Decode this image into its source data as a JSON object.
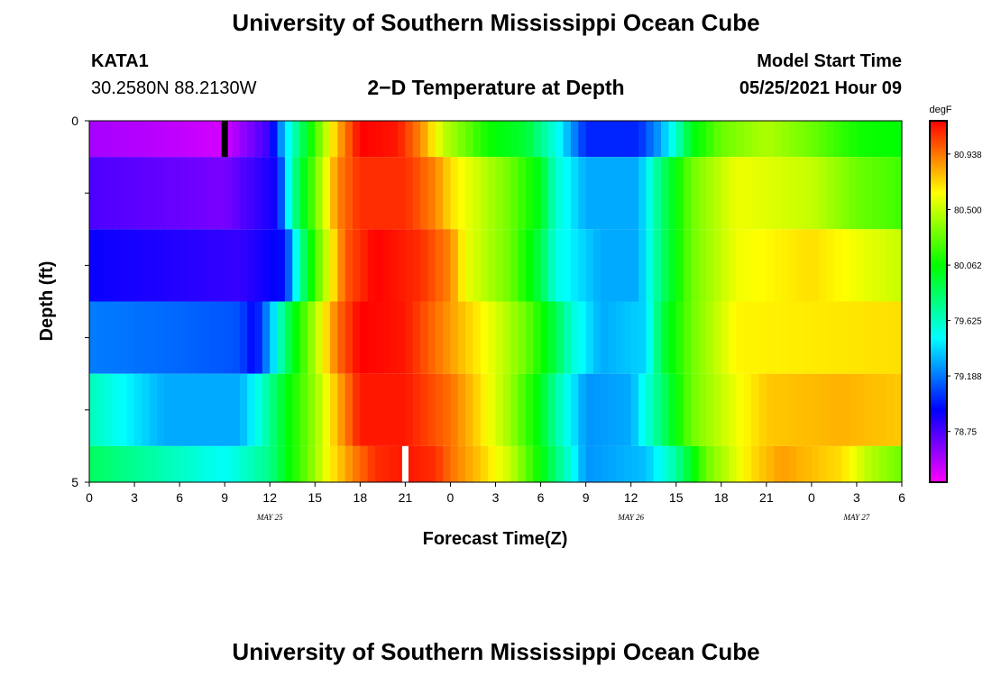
{
  "header": {
    "title": "University of Southern Mississippi Ocean Cube",
    "station_id": "KATA1",
    "station_coords": "30.2580N  88.2130W",
    "subtitle": "2−D Temperature at Depth",
    "start_label": "Model Start Time",
    "start_value": "05/25/2021 Hour 09"
  },
  "footer": {
    "title": "University of Southern Mississippi Ocean Cube"
  },
  "chart_data": {
    "type": "heatmap",
    "title": "2−D Temperature at Depth",
    "xlabel": "Forecast Time(Z)",
    "ylabel": "Depth (ft)",
    "ylim": [
      0,
      5
    ],
    "y_ticks": [
      0,
      1,
      2,
      3,
      4,
      5
    ],
    "y_tick_labels": [
      "0",
      "",
      "",
      "",
      "",
      "5"
    ],
    "x_hours": [
      0,
      54
    ],
    "x_tick_labels": [
      "0",
      "3",
      "6",
      "9",
      "12",
      "15",
      "18",
      "21",
      "0",
      "3",
      "6",
      "9",
      "12",
      "15",
      "18",
      "21",
      "0",
      "3",
      "6"
    ],
    "date_labels": [
      {
        "label": "MAY 25",
        "hour": 12
      },
      {
        "label": "MAY 26",
        "hour": 36
      },
      {
        "label": "MAY 27",
        "hour": 51
      }
    ],
    "colorbar": {
      "units": "degF",
      "range": [
        78.35,
        81.2
      ],
      "tick_values": [
        80.938,
        80.5,
        80.062,
        79.625,
        79.188,
        78.75
      ],
      "tick_labels": [
        "80.938",
        "80.500",
        "80.062",
        "79.625",
        "79.188",
        "78.75"
      ]
    },
    "markers": [
      {
        "name": "model-start-marker",
        "hour": 9,
        "depth_band": [
          0,
          0.5
        ],
        "color": "#000000"
      },
      {
        "name": "current-time-marker",
        "hour": 21,
        "depth_band": [
          4.5,
          5
        ],
        "color": "#ffffff"
      }
    ],
    "depth_bands": [
      {
        "depth_range": [
          0,
          0.5
        ],
        "keys": [
          [
            0,
            78.55
          ],
          [
            5,
            78.5
          ],
          [
            9,
            78.45
          ],
          [
            12,
            78.8
          ],
          [
            13,
            79.4
          ],
          [
            14.5,
            80.0
          ],
          [
            16.5,
            80.8
          ],
          [
            18,
            81.2
          ],
          [
            20.5,
            81.15
          ],
          [
            22,
            80.9
          ],
          [
            23.5,
            80.5
          ],
          [
            25,
            80.3
          ],
          [
            26,
            80.15
          ],
          [
            27,
            80.05
          ],
          [
            29,
            79.95
          ],
          [
            31,
            79.55
          ],
          [
            33,
            79.0
          ],
          [
            36.5,
            79.0
          ],
          [
            38,
            79.3
          ],
          [
            39,
            79.6
          ],
          [
            40,
            80.0
          ],
          [
            42,
            80.3
          ],
          [
            45,
            80.45
          ],
          [
            48,
            80.3
          ],
          [
            51,
            80.1
          ],
          [
            54,
            80.05
          ]
        ]
      },
      {
        "depth_range": [
          0.5,
          1.5
        ],
        "keys": [
          [
            0,
            78.75
          ],
          [
            9,
            78.65
          ],
          [
            12.5,
            78.9
          ],
          [
            13.5,
            79.7
          ],
          [
            15,
            80.3
          ],
          [
            16.5,
            80.9
          ],
          [
            18,
            81.1
          ],
          [
            21,
            81.1
          ],
          [
            23,
            80.9
          ],
          [
            24,
            80.7
          ],
          [
            26,
            80.5
          ],
          [
            28,
            80.3
          ],
          [
            30,
            80.0
          ],
          [
            31,
            79.6
          ],
          [
            33,
            79.3
          ],
          [
            36.5,
            79.3
          ],
          [
            38,
            79.8
          ],
          [
            40,
            80.3
          ],
          [
            43,
            80.6
          ],
          [
            48,
            80.5
          ],
          [
            51,
            80.3
          ],
          [
            54,
            80.2
          ]
        ]
      },
      {
        "depth_range": [
          1.5,
          2.5
        ],
        "keys": [
          [
            0,
            78.9
          ],
          [
            10,
            78.8
          ],
          [
            13,
            78.95
          ],
          [
            14,
            79.7
          ],
          [
            15,
            80.2
          ],
          [
            17,
            81.0
          ],
          [
            19,
            81.2
          ],
          [
            22,
            81.1
          ],
          [
            24,
            80.9
          ],
          [
            25,
            80.6
          ],
          [
            28,
            80.3
          ],
          [
            30,
            79.9
          ],
          [
            31,
            79.55
          ],
          [
            34,
            79.3
          ],
          [
            36.5,
            79.3
          ],
          [
            38,
            79.8
          ],
          [
            40,
            80.3
          ],
          [
            43,
            80.6
          ],
          [
            48,
            80.7
          ],
          [
            51,
            80.6
          ],
          [
            54,
            80.5
          ]
        ]
      },
      {
        "depth_range": [
          2.5,
          3.5
        ],
        "keys": [
          [
            0,
            79.2
          ],
          [
            6,
            79.15
          ],
          [
            10,
            79.1
          ],
          [
            11,
            78.9
          ],
          [
            12,
            79.3
          ],
          [
            13,
            79.8
          ],
          [
            14.5,
            80.3
          ],
          [
            16.5,
            80.95
          ],
          [
            18,
            81.2
          ],
          [
            21,
            81.15
          ],
          [
            23,
            80.95
          ],
          [
            25,
            80.75
          ],
          [
            27,
            80.55
          ],
          [
            29,
            80.3
          ],
          [
            31,
            79.9
          ],
          [
            32,
            79.6
          ],
          [
            34,
            79.3
          ],
          [
            37,
            79.4
          ],
          [
            38,
            79.9
          ],
          [
            40,
            80.3
          ],
          [
            43,
            80.65
          ],
          [
            54,
            80.7
          ]
        ]
      },
      {
        "depth_range": [
          3.5,
          4.5
        ],
        "keys": [
          [
            0,
            79.65
          ],
          [
            5,
            79.3
          ],
          [
            10,
            79.3
          ],
          [
            11.5,
            79.6
          ],
          [
            13,
            80.0
          ],
          [
            15,
            80.4
          ],
          [
            16.5,
            80.8
          ],
          [
            18,
            81.15
          ],
          [
            21,
            81.15
          ],
          [
            24,
            80.95
          ],
          [
            26,
            80.7
          ],
          [
            28,
            80.4
          ],
          [
            30,
            80.0
          ],
          [
            31,
            79.7
          ],
          [
            33,
            79.25
          ],
          [
            36,
            79.3
          ],
          [
            38,
            79.8
          ],
          [
            40,
            80.3
          ],
          [
            43,
            80.6
          ],
          [
            45,
            80.75
          ],
          [
            50,
            80.8
          ],
          [
            54,
            80.75
          ]
        ]
      },
      {
        "depth_range": [
          4.5,
          5
        ],
        "keys": [
          [
            0,
            79.85
          ],
          [
            4,
            79.7
          ],
          [
            9,
            79.5
          ],
          [
            12,
            79.75
          ],
          [
            13,
            80.0
          ],
          [
            14.5,
            80.3
          ],
          [
            16,
            80.65
          ],
          [
            17.5,
            80.9
          ],
          [
            19,
            81.1
          ],
          [
            21,
            81.15
          ],
          [
            23,
            81.1
          ],
          [
            24,
            80.95
          ],
          [
            26,
            80.75
          ],
          [
            28,
            80.5
          ],
          [
            30,
            80.05
          ],
          [
            32,
            79.55
          ],
          [
            33,
            79.25
          ],
          [
            37,
            79.35
          ],
          [
            39,
            79.7
          ],
          [
            41,
            80.3
          ],
          [
            44,
            80.7
          ],
          [
            46,
            80.85
          ],
          [
            50,
            80.7
          ],
          [
            52,
            80.45
          ],
          [
            54,
            80.3
          ]
        ]
      }
    ]
  }
}
